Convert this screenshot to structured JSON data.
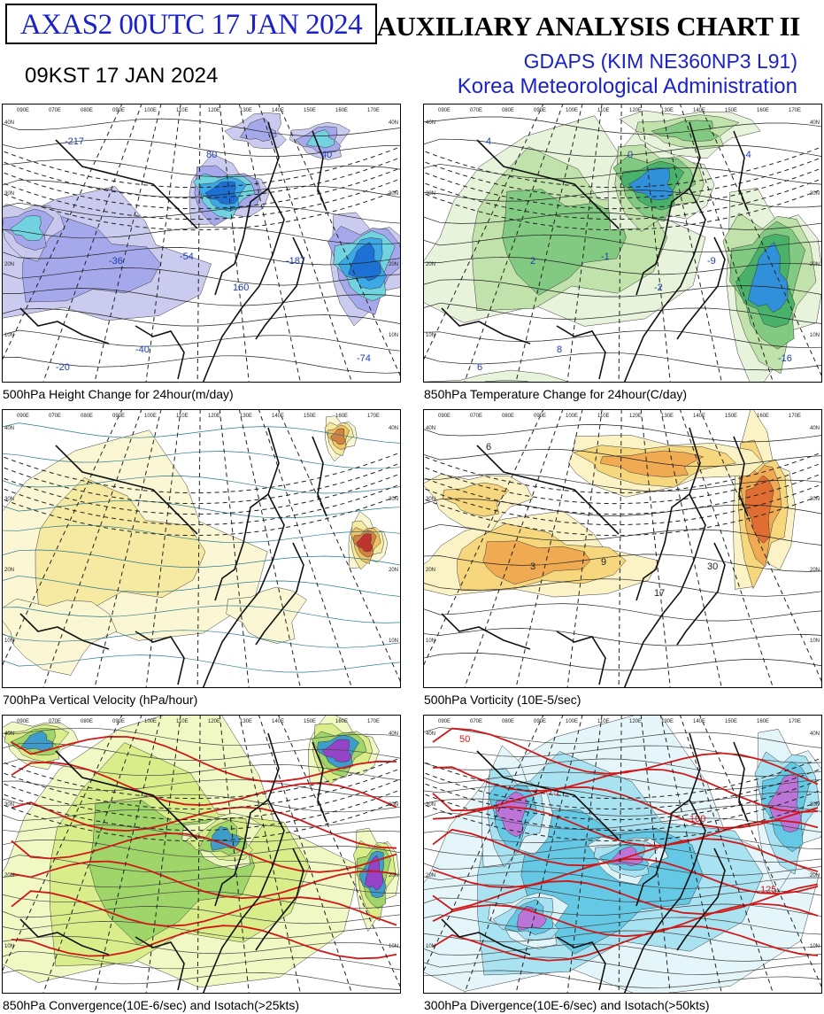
{
  "header": {
    "chart_id": "AXAS2  00UTC 17 JAN 2024",
    "local_time": "09KST 17 JAN 2024",
    "title": "AUXILIARY ANALYSIS CHART II",
    "model": "GDAPS (KIM NE360NP3 L91)",
    "agency": "Korea Meteorological Administration"
  },
  "colors": {
    "header_blue": "#1a22c8",
    "isotach_red": "#d01818",
    "contour_black": "#222222"
  },
  "panels": [
    {
      "id": "p1",
      "caption": "500hPa Height Change for 24hour(m/day)",
      "labels": [
        "-217",
        "-36",
        "-54",
        "160",
        "-187",
        "-74",
        "-20",
        "-40",
        "40",
        "80"
      ],
      "palette": [
        "#c9c9f0",
        "#a3a7ea",
        "#6fd6e0",
        "#3aa6e6",
        "#1c6fd4"
      ]
    },
    {
      "id": "p2",
      "caption": "850hPa Temperature Change for 24hour(C/day)",
      "labels": [
        "4",
        "2",
        "-1",
        "-2",
        "-9",
        "-16",
        "6",
        "8",
        "-4",
        "0"
      ],
      "palette": [
        "#e6f4da",
        "#bfe2a8",
        "#7fc87f",
        "#46b068",
        "#2f8fe0"
      ]
    },
    {
      "id": "p3",
      "caption": "700hPa Vertical Velocity (hPa/hour)",
      "labels": [],
      "palette": [
        "#fbf7d2",
        "#f6e9a0",
        "#f0c060",
        "#d08040",
        "#c03030"
      ]
    },
    {
      "id": "p4",
      "caption": "500hPa Vorticity (10E-5/sec)",
      "labels": [
        "6",
        "3",
        "9",
        "17",
        "30"
      ],
      "palette": [
        "#fbf3c4",
        "#f6d67a",
        "#f0a850",
        "#e06a30"
      ]
    },
    {
      "id": "p5",
      "caption": "850hPa Convergence(10E-6/sec) and Isotach(>25kts)",
      "labels": [],
      "palette": [
        "#f0f8c0",
        "#d8ee88",
        "#9cd468",
        "#3a9ad0",
        "#9a40c8"
      ]
    },
    {
      "id": "p6",
      "caption": "300hPa Divergence(10E-6/sec) and Isotach(>50kts)",
      "labels": [
        "50",
        "75",
        "100",
        "125"
      ],
      "palette": [
        "#e4f6fb",
        "#a6e2f2",
        "#62c8e6",
        "#c070d8"
      ]
    }
  ],
  "map_grid": {
    "longitude_labels": [
      "090E",
      "070E",
      "080E",
      "090E",
      "100E",
      "110E",
      "120E",
      "130E",
      "140E",
      "150E",
      "160E",
      "170E"
    ],
    "latitude_labels": [
      "40N",
      "30N",
      "20N",
      "10N"
    ]
  }
}
